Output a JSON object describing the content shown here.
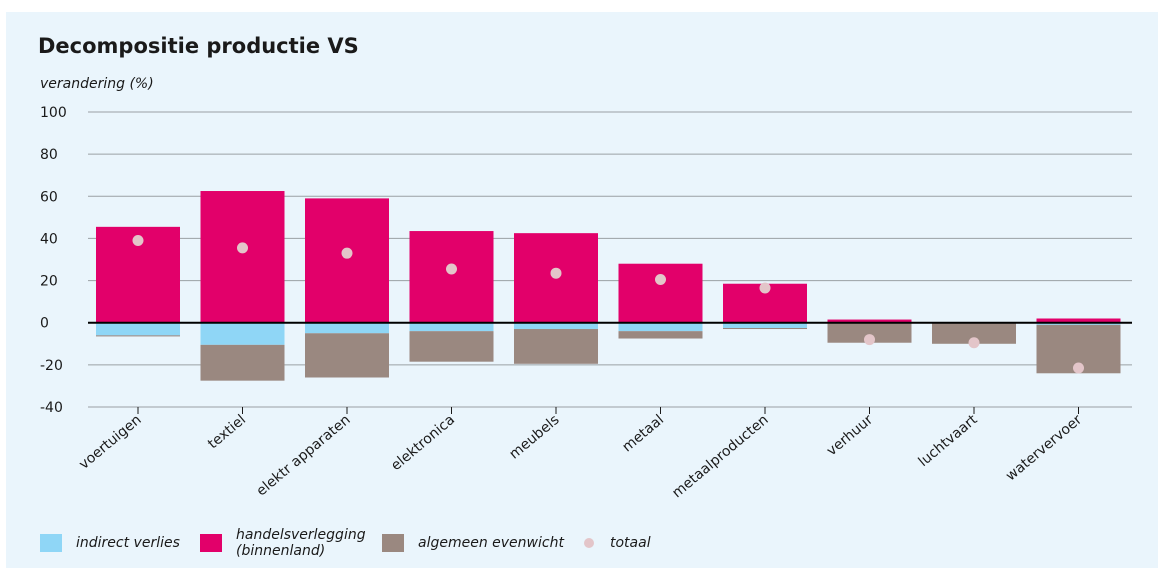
{
  "title": "Decompositie productie VS",
  "colors": {
    "background": "#eaf5fc",
    "indirect": "#8fd6f6",
    "handels": "#e2006a",
    "algemeen": "#9a8880",
    "totaal": "#e3c5c9",
    "grid": "#9aa0a4",
    "zero": "#000000"
  },
  "chart_data": {
    "type": "bar",
    "stacked": true,
    "title": "Decompositie productie VS",
    "ylabel": "verandering (%)",
    "xlabel": "",
    "ylim": [
      -40,
      100
    ],
    "yticks": [
      100,
      80,
      60,
      40,
      20,
      0,
      -20,
      -40
    ],
    "ytick_labels": [
      "100",
      "80",
      "60",
      "40",
      "20",
      "0",
      "-20",
      "-40"
    ],
    "grid": true,
    "legend_position": "bottom",
    "categories": [
      "voertuigen",
      "textiel",
      "elektr apparaten",
      "elektronica",
      "meubels",
      "metaal",
      "metaalproducten",
      "verhuur",
      "luchtvaart",
      "watervervoer"
    ],
    "series": [
      {
        "name": "indirect verlies",
        "key": "indirect",
        "values": [
          -6,
          -10.5,
          -5,
          -4,
          -3,
          -4,
          -2.5,
          0,
          0,
          -1
        ]
      },
      {
        "name": "handelsverlegging (binnenland)",
        "key": "handels",
        "values": [
          45.5,
          62.5,
          59,
          43.5,
          42.5,
          28,
          18.5,
          1.5,
          0,
          2
        ]
      },
      {
        "name": "algemeen evenwicht",
        "key": "algemeen",
        "values": [
          -0.5,
          -17,
          -21,
          -14.5,
          -16.5,
          -3.5,
          -0.5,
          -9.5,
          -10,
          -23
        ]
      },
      {
        "name": "totaal",
        "key": "totaal",
        "type": "point",
        "values": [
          39,
          35.5,
          33,
          25.5,
          23.5,
          20.5,
          16.5,
          -8,
          -9.5,
          -21.5
        ]
      }
    ]
  },
  "legend": {
    "items": [
      {
        "key": "indirect",
        "lines": [
          "indirect verlies"
        ]
      },
      {
        "key": "handels",
        "lines": [
          "handelsverlegging",
          "(binnenland)"
        ]
      },
      {
        "key": "algemeen",
        "lines": [
          "algemeen evenwicht"
        ]
      },
      {
        "key": "totaal",
        "lines": [
          "totaal"
        ]
      }
    ]
  }
}
